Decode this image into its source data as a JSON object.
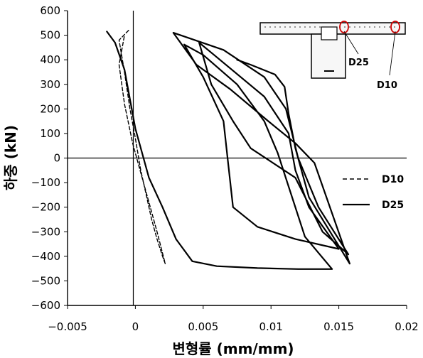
{
  "chart_data": {
    "type": "line",
    "xlabel": "변형률 (mm/mm)",
    "ylabel": "하중 (kN)",
    "xlim": [
      -0.005,
      0.02
    ],
    "ylim": [
      -600,
      600
    ],
    "xticks": [
      -0.005,
      0,
      0.005,
      0.01,
      0.015,
      0.02
    ],
    "xtick_labels": [
      "−0.005",
      "0",
      "0.005",
      "0.01",
      "0.015",
      "0.02"
    ],
    "yticks": [
      600,
      500,
      400,
      300,
      200,
      100,
      0,
      -100,
      -200,
      -300,
      -400,
      -500,
      -600
    ],
    "ytick_labels": [
      "600",
      "500",
      "400",
      "300",
      "200",
      "100",
      "0",
      "−100",
      "−200",
      "−300",
      "−400",
      "−500",
      "−600"
    ],
    "grid": false,
    "legend": "right",
    "inset_labels": [
      "D25",
      "D10"
    ],
    "series": [
      {
        "name": "D10",
        "style": "dashed",
        "points": [
          [
            -0.0005,
            520
          ],
          [
            -0.0012,
            480
          ],
          [
            -0.0008,
            350
          ],
          [
            -0.0004,
            200
          ],
          [
            0.0,
            80
          ],
          [
            0.0004,
            -50
          ],
          [
            0.0008,
            -150
          ],
          [
            0.0012,
            -250
          ],
          [
            0.0016,
            -330
          ],
          [
            0.002,
            -400
          ],
          [
            0.0022,
            -430
          ],
          [
            0.0016,
            -300
          ],
          [
            0.001,
            -180
          ],
          [
            0.0004,
            -60
          ],
          [
            -0.0002,
            60
          ],
          [
            -0.0008,
            220
          ],
          [
            -0.0012,
            380
          ],
          [
            -0.0008,
            500
          ]
        ]
      },
      {
        "name": "D25",
        "style": "solid",
        "points": [
          [
            -0.0021,
            515
          ],
          [
            -0.0015,
            470
          ],
          [
            -0.0008,
            360
          ],
          [
            0.0,
            120
          ],
          [
            0.001,
            -80
          ],
          [
            0.002,
            -200
          ],
          [
            0.003,
            -330
          ],
          [
            0.0042,
            -420
          ],
          [
            0.006,
            -440
          ],
          [
            0.009,
            -448
          ],
          [
            0.012,
            -452
          ],
          [
            0.0145,
            -452
          ],
          [
            0.0125,
            -320
          ],
          [
            0.0115,
            -150
          ],
          [
            0.0105,
            20
          ],
          [
            0.0095,
            150
          ],
          [
            0.0075,
            300
          ],
          [
            0.005,
            420
          ],
          [
            0.0036,
            462
          ],
          [
            0.005,
            330
          ],
          [
            0.0065,
            150
          ],
          [
            0.0068,
            0
          ],
          [
            0.0072,
            -200
          ],
          [
            0.009,
            -280
          ],
          [
            0.0118,
            -330
          ],
          [
            0.015,
            -370
          ],
          [
            0.0128,
            -200
          ],
          [
            0.0118,
            -50
          ],
          [
            0.0113,
            100
          ],
          [
            0.0095,
            250
          ],
          [
            0.0058,
            420
          ],
          [
            0.0047,
            470
          ],
          [
            0.0056,
            300
          ],
          [
            0.0072,
            150
          ],
          [
            0.0085,
            40
          ],
          [
            0.0118,
            -80
          ],
          [
            0.0138,
            -300
          ],
          [
            0.0157,
            -392
          ],
          [
            0.0135,
            -200
          ],
          [
            0.012,
            0
          ],
          [
            0.0111,
            200
          ],
          [
            0.0095,
            330
          ],
          [
            0.0065,
            440
          ],
          [
            0.0028,
            510
          ],
          [
            0.0045,
            380
          ],
          [
            0.007,
            280
          ],
          [
            0.0098,
            150
          ],
          [
            0.0118,
            60
          ],
          [
            0.0132,
            -20
          ],
          [
            0.0158,
            -430
          ],
          [
            0.0128,
            -160
          ],
          [
            0.0118,
            40
          ],
          [
            0.0113,
            180
          ],
          [
            0.011,
            290
          ],
          [
            0.0103,
            340
          ],
          [
            0.0085,
            380
          ],
          [
            0.0075,
            400
          ]
        ]
      }
    ]
  }
}
